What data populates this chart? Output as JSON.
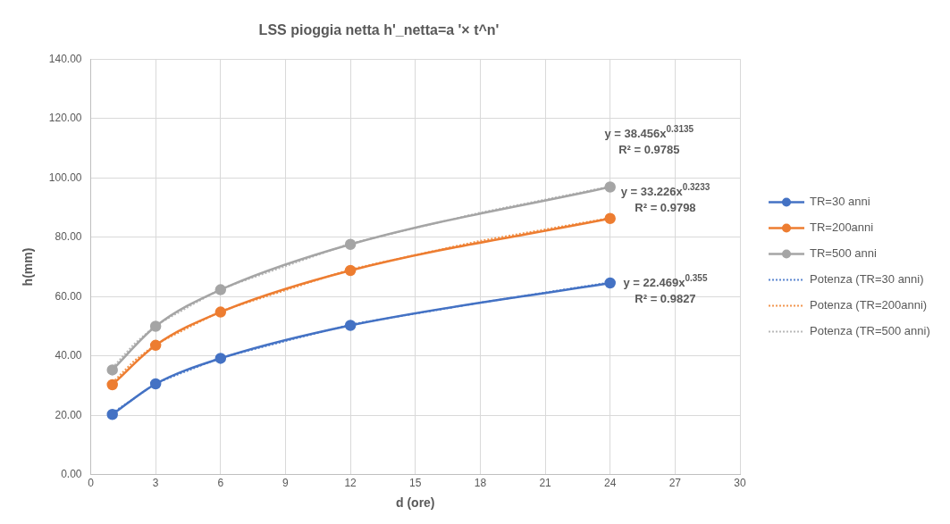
{
  "chart_data": {
    "type": "line",
    "title": "LSS pioggia netta h'_netta=a '× t^n'",
    "xlabel": "d (ore)",
    "ylabel": "h(mm)",
    "xlim": [
      0,
      30
    ],
    "xticks": [
      0,
      3,
      6,
      9,
      12,
      15,
      18,
      21,
      24,
      27,
      30
    ],
    "ylim": [
      0,
      140
    ],
    "yticks": [
      {
        "value": 0,
        "label": "0.00"
      },
      {
        "value": 20,
        "label": "20.00"
      },
      {
        "value": 40,
        "label": "40.00"
      },
      {
        "value": 60,
        "label": "60.00"
      },
      {
        "value": 80,
        "label": "80.00"
      },
      {
        "value": 100,
        "label": "100.00"
      },
      {
        "value": 120,
        "label": "120.00"
      },
      {
        "value": 140,
        "label": "140.00"
      }
    ],
    "grid": true,
    "legend": "right",
    "marker": "circle",
    "line_style": "solid",
    "x": [
      1,
      3,
      6,
      12,
      24
    ],
    "series": [
      {
        "name": "TR=30 anni",
        "color": "#4472c4",
        "values": [
          20.3,
          30.6,
          39.2,
          50.3,
          64.6
        ]
      },
      {
        "name": "TR=200anni",
        "color": "#ed7d31",
        "values": [
          30.3,
          43.6,
          54.8,
          68.8,
          86.3
        ]
      },
      {
        "name": "TR=500 anni",
        "color": "#a5a5a5",
        "values": [
          35.3,
          50.0,
          62.3,
          77.6,
          96.9
        ]
      },
      {
        "name": "Potenza (TR=30 anni)",
        "color": "#5a86d0",
        "type": "line",
        "marker": "none",
        "line_style": "dotted",
        "x": [
          1,
          2,
          3,
          6,
          12,
          18,
          24
        ],
        "values": [
          20.8,
          25.71,
          30.8,
          39.4,
          50.6,
          57.94,
          64.8
        ]
      },
      {
        "name": "Potenza (TR=200anni)",
        "color": "#f2964f",
        "type": "line",
        "marker": "none",
        "line_style": "dotted",
        "x": [
          1,
          2,
          3,
          6,
          12,
          18,
          24
        ],
        "values": [
          31.0,
          38.3,
          43.9,
          55.1,
          69.2,
          78.8,
          86.5
        ]
      },
      {
        "name": "Potenza (TR=500 anni)",
        "color": "#bababa",
        "type": "line",
        "marker": "none",
        "line_style": "dotted",
        "x": [
          1,
          2,
          3,
          6,
          12,
          18,
          24
        ],
        "values": [
          36.0,
          44.0,
          50.3,
          62.6,
          77.9,
          88.3,
          97.1
        ]
      }
    ],
    "annotations": [
      "y = 38.456x$^{0.3135}$\nR² = 0.9785",
      "y = 33.226x$^{0.3233}$\nR² = 0.9798",
      "y = 22.469x$^{0.355}$\nR² = 0.9827"
    ]
  }
}
